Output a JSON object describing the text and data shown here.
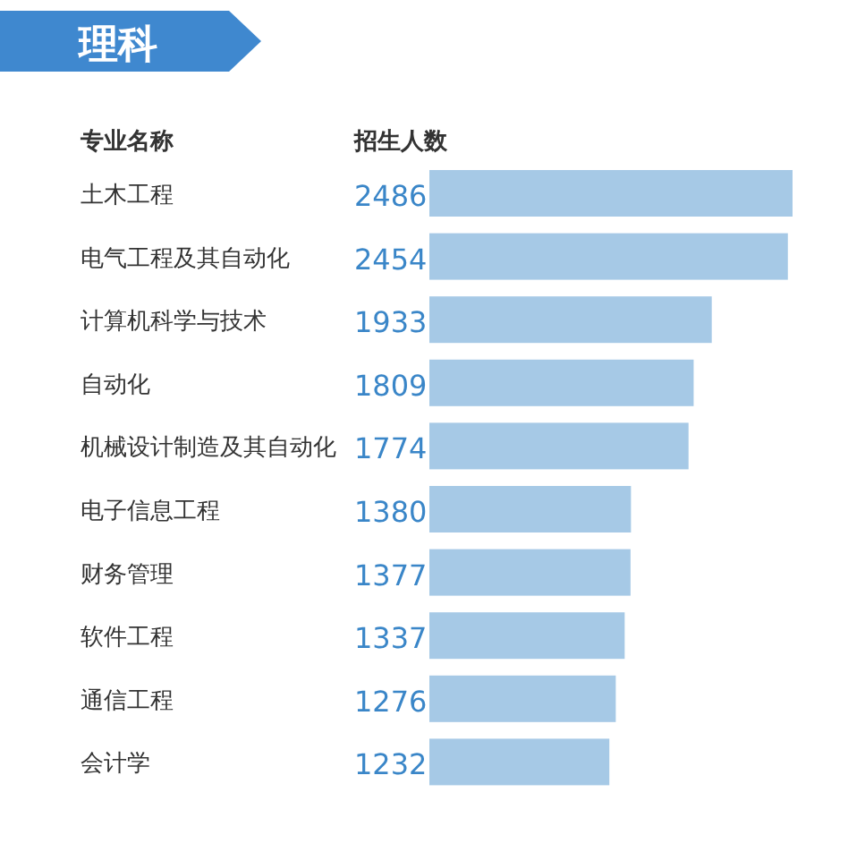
{
  "chart_data": {
    "type": "bar",
    "orientation": "horizontal",
    "title": "理科",
    "xlabel": "招生人数",
    "ylabel": "专业名称",
    "categories": [
      "土木工程",
      "电气工程及其自动化",
      "计算机科学与技术",
      "自动化",
      "机械设计制造及其自动化",
      "电子信息工程",
      "财务管理",
      "软件工程",
      "通信工程",
      "会计学"
    ],
    "values": [
      2486,
      2454,
      1933,
      1809,
      1774,
      1380,
      1377,
      1337,
      1276,
      1232
    ],
    "color": "#a6c9e6",
    "data_labels": true
  }
}
